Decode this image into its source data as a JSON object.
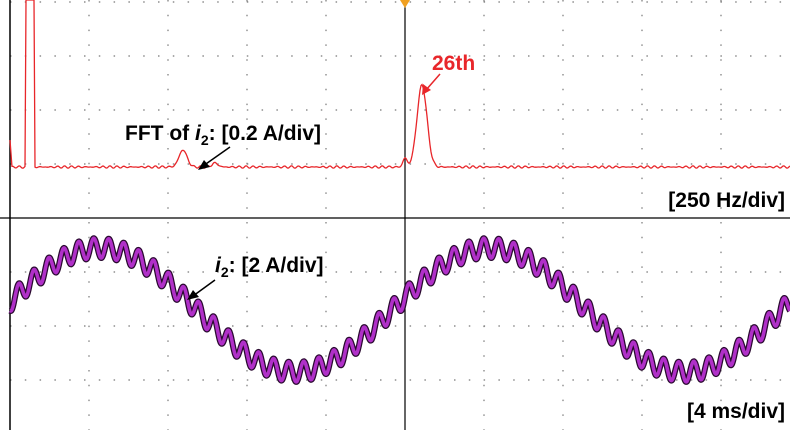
{
  "fft_label": {
    "prefix": "FFT of ",
    "var": "i",
    "sub": "2",
    "suffix": ": [0.2 A/div]"
  },
  "harmonic_label": "26th",
  "freq_scale": "[250 Hz/div]",
  "current_label": {
    "var": "i",
    "sub": "2",
    "suffix": ": [2 A/div]"
  },
  "time_scale": "[4 ms/div]"
}
